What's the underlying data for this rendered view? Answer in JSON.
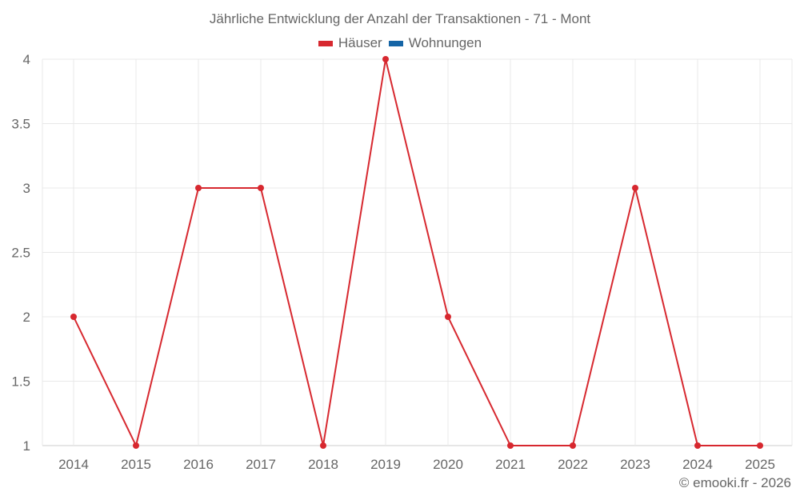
{
  "chart_data": {
    "type": "line",
    "title": "Jährliche Entwicklung der Anzahl der Transaktionen - 71 - Mont",
    "xlabel": "",
    "ylabel": "",
    "categories": [
      "2014",
      "2015",
      "2016",
      "2017",
      "2018",
      "2019",
      "2020",
      "2021",
      "2022",
      "2023",
      "2024",
      "2025"
    ],
    "series": [
      {
        "name": "Häuser",
        "color": "#d7282f",
        "values": [
          2,
          1,
          3,
          3,
          1,
          4,
          2,
          1,
          1,
          3,
          1,
          1
        ]
      },
      {
        "name": "Wohnungen",
        "color": "#1565a6",
        "values": []
      }
    ],
    "yticks": [
      "1",
      "1.5",
      "2",
      "2.5",
      "3",
      "3.5",
      "4"
    ],
    "ylim": [
      1,
      4
    ],
    "grid": true,
    "legend_position": "top"
  },
  "credit": "© emooki.fr - 2026"
}
